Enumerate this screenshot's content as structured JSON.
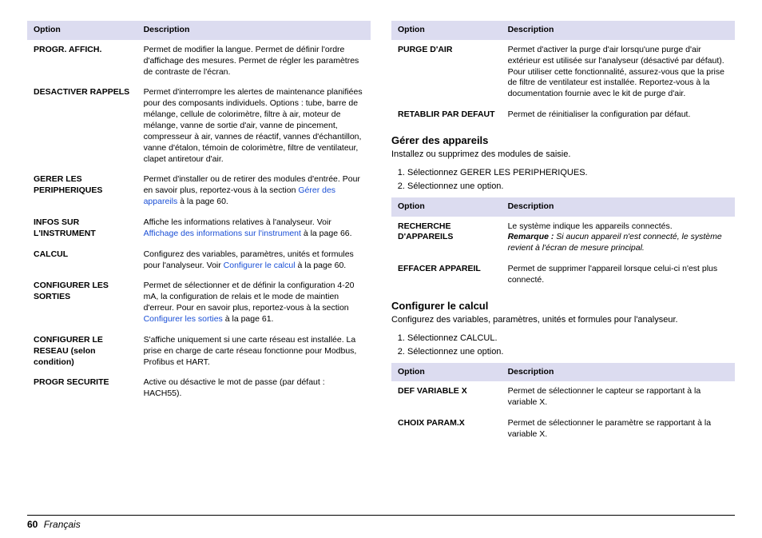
{
  "headers": {
    "option": "Option",
    "description": "Description"
  },
  "left_table": [
    {
      "opt": "PROGR. AFFICH.",
      "desc": "Permet de modifier la langue. Permet de définir l'ordre d'affichage des mesures. Permet de régler les paramètres de contraste de l'écran."
    },
    {
      "opt": "DESACTIVER RAPPELS",
      "desc": "Permet d'interrompre les alertes de maintenance planifiées pour des composants individuels. Options : tube, barre de mélange, cellule de colorimètre, filtre à air, moteur de mélange, vanne de sortie d'air, vanne de pincement, compresseur à air, vannes de réactif, vannes d'échantillon, vanne d'étalon, témoin de colorimètre, filtre de ventilateur, clapet antiretour d'air."
    },
    {
      "opt": "GERER LES PERIPHERIQUES",
      "desc_pre": "Permet d'installer ou de retirer des modules d'entrée. Pour en savoir plus, reportez-vous à la section ",
      "link": "Gérer des appareils",
      "desc_post": " à la page 60."
    },
    {
      "opt": "INFOS SUR L'INSTRUMENT",
      "desc_pre": "Affiche les informations relatives à l'analyseur. Voir ",
      "link": "Affichage des informations sur l'instrument",
      "desc_post": " à la page 66."
    },
    {
      "opt": "CALCUL",
      "desc_pre": "Configurez des variables, paramètres, unités et formules pour l'analyseur. Voir ",
      "link": "Configurer le calcul",
      "desc_post": " à la page 60."
    },
    {
      "opt": "CONFIGURER LES SORTIES",
      "desc_pre": "Permet de sélectionner et de définir la configuration 4-20 mA, la configuration de relais et le mode de maintien d'erreur. Pour en savoir plus, reportez-vous à la section ",
      "link": "Configurer les sorties",
      "desc_post": " à la page 61."
    },
    {
      "opt": "CONFIGURER LE RESEAU (selon condition)",
      "desc": "S'affiche uniquement si une carte réseau est installée. La prise en charge de carte réseau fonctionne pour Modbus, Profibus et HART."
    },
    {
      "opt": "PROGR SECURITE",
      "desc": "Active ou désactive le mot de passe (par défaut : HACH55)."
    }
  ],
  "right_table": [
    {
      "opt": "PURGE D'AIR",
      "desc": "Permet d'activer la purge d'air lorsqu'une purge d'air extérieur est utilisée sur l'analyseur (désactivé par défaut). Pour utiliser cette fonctionnalité, assurez-vous que la prise de filtre de ventilateur est installée. Reportez-vous à la documentation fournie avec le kit de purge d'air."
    },
    {
      "opt": "RETABLIR PAR DEFAUT",
      "desc": "Permet de réinitialiser la configuration par défaut."
    }
  ],
  "sec1": {
    "title": "Gérer des appareils",
    "intro": "Installez ou supprimez des modules de saisie.",
    "steps": [
      "Sélectionnez GERER LES PERIPHERIQUES.",
      "Sélectionnez une option."
    ],
    "table": [
      {
        "opt": "RECHERCHE D'APPAREILS",
        "desc_pre": "Le système indique les appareils connectés.",
        "remark_label": "Remarque :",
        "remark": " Si aucun appareil n'est connecté, le système revient à l'écran de mesure principal."
      },
      {
        "opt": "EFFACER APPAREIL",
        "desc": "Permet de supprimer l'appareil lorsque celui-ci n'est plus connecté."
      }
    ]
  },
  "sec2": {
    "title": "Configurer le calcul",
    "intro": "Configurez des variables, paramètres, unités et formules pour l'analyseur.",
    "steps": [
      "Sélectionnez CALCUL.",
      "Sélectionnez une option."
    ],
    "table": [
      {
        "opt": "DEF VARIABLE X",
        "desc": "Permet de sélectionner le capteur se rapportant à la variable X."
      },
      {
        "opt": "CHOIX PARAM.X",
        "desc": "Permet de sélectionner le paramètre se rapportant à la variable X."
      }
    ]
  },
  "footer": {
    "page": "60",
    "lang": "Français"
  }
}
